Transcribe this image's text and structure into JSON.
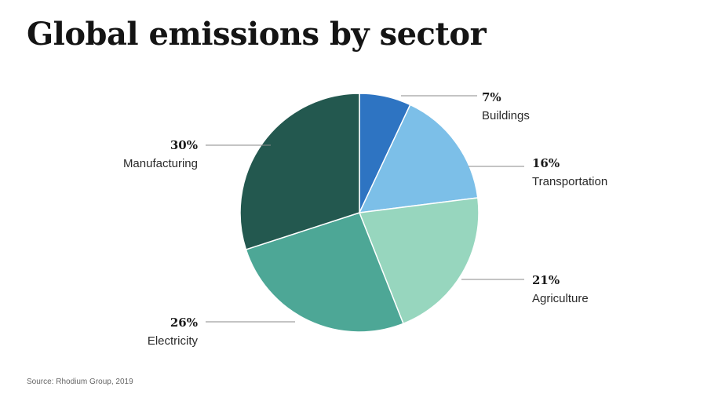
{
  "title": "Global emissions by sector",
  "source": "Source: Rhodium Group, 2019",
  "chart_data": {
    "type": "pie",
    "title": "Global emissions by sector",
    "slices": [
      {
        "label": "Buildings",
        "value": 7,
        "display": "7%",
        "color": "#2e74c2"
      },
      {
        "label": "Transportation",
        "value": 16,
        "display": "16%",
        "color": "#7cbfe8"
      },
      {
        "label": "Agriculture",
        "value": 21,
        "display": "21%",
        "color": "#97d6be"
      },
      {
        "label": "Electricity",
        "value": 26,
        "display": "26%",
        "color": "#4da796"
      },
      {
        "label": "Manufacturing",
        "value": 30,
        "display": "30%",
        "color": "#23584f"
      }
    ],
    "start": "12 o'clock",
    "direction": "clockwise",
    "legend": "none (labels beside slices)"
  }
}
